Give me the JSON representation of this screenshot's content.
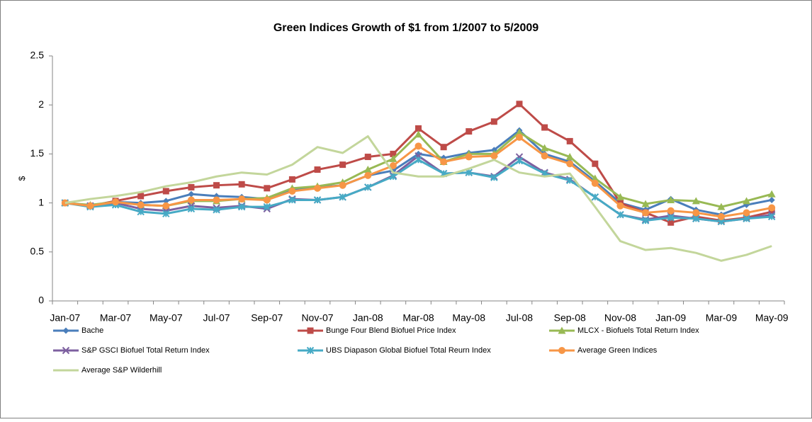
{
  "chart_data": {
    "type": "line",
    "title": "Green Indices Growth of $1 from 1/2007 to 5/2009",
    "y_label": "$",
    "categories": [
      "Jan-07",
      null,
      "Mar-07",
      null,
      "May-07",
      null,
      "Jul-07",
      null,
      "Sep-07",
      null,
      "Nov-07",
      null,
      "Jan-08",
      null,
      "Mar-08",
      null,
      "May-08",
      null,
      "Jul-08",
      null,
      "Sep-08",
      null,
      "Nov-08",
      null,
      "Jan-09",
      null,
      "Mar-09",
      null,
      "May-09"
    ],
    "ylim": [
      0,
      2.5
    ],
    "yticks": [
      0,
      0.5,
      1,
      1.5,
      2,
      2.5
    ],
    "grid": false,
    "legend": "bottom",
    "series": [
      {
        "name": "Bache",
        "color": "#4a7ebb",
        "marker": "diamond",
        "values": [
          1.0,
          0.97,
          1.01,
          1.0,
          1.02,
          1.09,
          1.07,
          1.06,
          1.04,
          1.14,
          1.16,
          1.18,
          1.28,
          1.33,
          1.5,
          1.46,
          1.51,
          1.54,
          1.74,
          1.5,
          1.42,
          1.22,
          1.0,
          0.93,
          1.04,
          0.93,
          0.88,
          0.98,
          1.03
        ]
      },
      {
        "name": "Bunge Four Blend Biofuel Price Index",
        "color": "#be4b48",
        "marker": "square",
        "values": [
          1.0,
          0.97,
          1.02,
          1.07,
          1.12,
          1.16,
          1.18,
          1.19,
          1.15,
          1.24,
          1.34,
          1.39,
          1.47,
          1.5,
          1.76,
          1.57,
          1.73,
          1.83,
          2.01,
          1.77,
          1.63,
          1.4,
          1.0,
          0.9,
          0.8,
          0.86,
          0.82,
          0.85,
          0.91
        ]
      },
      {
        "name": "MLCX - Biofuels Total Return Index",
        "color": "#98b954",
        "marker": "triangle",
        "values": [
          1.0,
          0.98,
          1.01,
          0.98,
          0.97,
          1.02,
          1.02,
          1.04,
          1.05,
          1.15,
          1.17,
          1.21,
          1.34,
          1.45,
          1.7,
          1.42,
          1.5,
          1.5,
          1.72,
          1.56,
          1.47,
          1.25,
          1.06,
          0.99,
          1.03,
          1.02,
          0.96,
          1.02,
          1.09
        ]
      },
      {
        "name": "S&P GSCI Biofuel Total Return Index",
        "color": "#7d60a0",
        "marker": "x",
        "values": [
          1.0,
          0.97,
          1.0,
          0.94,
          0.92,
          0.97,
          0.95,
          0.97,
          0.94,
          1.04,
          1.03,
          1.06,
          1.16,
          1.28,
          1.48,
          1.3,
          1.31,
          1.27,
          1.47,
          1.31,
          1.24,
          1.06,
          0.88,
          0.83,
          0.87,
          0.84,
          0.81,
          0.84,
          0.88
        ]
      },
      {
        "name": "UBS Diapason Global Biofuel Total Reurn Index",
        "color": "#46aac5",
        "marker": "asterisk",
        "values": [
          1.0,
          0.96,
          0.98,
          0.91,
          0.89,
          0.94,
          0.93,
          0.96,
          0.96,
          1.03,
          1.03,
          1.06,
          1.16,
          1.27,
          1.44,
          1.3,
          1.31,
          1.26,
          1.43,
          1.3,
          1.23,
          1.06,
          0.88,
          0.82,
          0.85,
          0.84,
          0.81,
          0.84,
          0.86
        ]
      },
      {
        "name": "Average Green Indices",
        "color": "#f79646",
        "marker": "circle",
        "values": [
          1.0,
          0.97,
          1.01,
          0.98,
          0.97,
          1.03,
          1.03,
          1.04,
          1.03,
          1.12,
          1.15,
          1.18,
          1.28,
          1.38,
          1.58,
          1.42,
          1.47,
          1.48,
          1.67,
          1.48,
          1.4,
          1.2,
          0.97,
          0.9,
          0.92,
          0.9,
          0.86,
          0.9,
          0.95
        ]
      },
      {
        "name": "Average S&P Wilderhill",
        "color": "#c3d69b",
        "marker": "none",
        "values": [
          1.0,
          1.04,
          1.07,
          1.11,
          1.17,
          1.21,
          1.27,
          1.31,
          1.29,
          1.39,
          1.57,
          1.51,
          1.68,
          1.31,
          1.27,
          1.27,
          1.35,
          1.44,
          1.31,
          1.27,
          1.3,
          0.96,
          0.61,
          0.52,
          0.54,
          0.49,
          0.41,
          0.47,
          0.56
        ]
      }
    ]
  }
}
